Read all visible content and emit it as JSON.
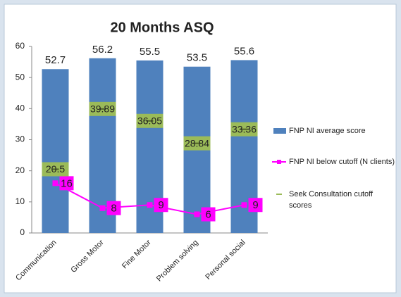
{
  "chart_data": {
    "type": "bar",
    "title": "20 Months ASQ",
    "categories": [
      "Communication",
      "Gross Motor",
      "Fine Motor",
      "Problem solving",
      "Personal social"
    ],
    "ylim": [
      0,
      60
    ],
    "yticks": [
      0,
      10,
      20,
      30,
      40,
      50,
      60
    ],
    "series": [
      {
        "name": "FNP NI average score",
        "type": "bar",
        "color": "#4f81bd",
        "values": [
          52.7,
          56.2,
          55.5,
          53.5,
          55.6
        ]
      },
      {
        "name": "FNP NI below cutoff (N clients)",
        "type": "line",
        "color": "#ff00ff",
        "values": [
          16,
          8,
          9,
          6,
          9
        ]
      },
      {
        "name": "Seek Consultation cutoff scores",
        "type": "marker",
        "color": "#9bbb59",
        "values": [
          20.5,
          39.89,
          36.05,
          28.84,
          33.36
        ]
      }
    ]
  }
}
